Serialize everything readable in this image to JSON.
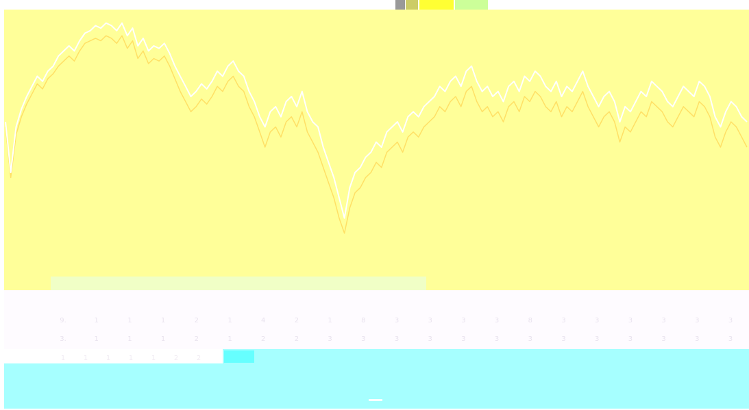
{
  "colors": {
    "chart_bg": "#ffff99",
    "lower_bg": "#fefbff",
    "footer_bg": "#a6ffff",
    "line_primary": "#ffffff",
    "line_secondary": "#ffe066",
    "tick_text": "#e8e2ee",
    "chip_gray": "#999999",
    "chip_yellow": "#ffff33",
    "chip_green": "#ccff99",
    "chip_cyan": "#33ffff"
  },
  "icons": {
    "toolbar_1": "square-icon",
    "toolbar_2": "star-icon",
    "toolbar_3": "chart-type-icon",
    "toolbar_4": "compare-icon"
  },
  "chart_data": {
    "type": "line",
    "x": [
      0,
      1,
      2,
      3,
      4,
      5,
      6,
      7,
      8,
      9,
      10,
      11,
      12,
      13,
      14,
      15,
      16,
      17,
      18,
      19,
      20,
      21,
      22,
      23,
      24,
      25,
      26,
      27,
      28,
      29,
      30,
      31,
      32,
      33,
      34,
      35,
      36,
      37,
      38,
      39,
      40,
      41,
      42,
      43,
      44,
      45,
      46,
      47,
      48,
      49,
      50,
      51,
      52,
      53,
      54,
      55,
      56,
      57,
      58,
      59,
      60,
      61,
      62,
      63,
      64,
      65,
      66,
      67,
      68,
      69,
      70,
      71,
      72,
      73,
      74,
      75,
      76,
      77,
      78,
      79,
      80,
      81,
      82,
      83,
      84,
      85,
      86,
      87,
      88,
      89,
      90,
      91,
      92,
      93,
      94,
      95,
      96,
      97,
      98,
      99,
      100,
      101,
      102,
      103,
      104,
      105,
      106,
      107,
      108,
      109,
      110,
      111,
      112,
      113,
      114,
      115,
      116,
      117,
      118,
      119,
      120,
      121,
      122,
      123,
      124,
      125,
      126,
      127,
      128,
      129,
      130,
      131,
      132,
      133,
      134,
      135,
      136,
      137,
      138,
      139,
      140
    ],
    "series": [
      {
        "values": [
          60,
          40,
          58,
          65,
          70,
          74,
          78,
          76,
          80,
          82,
          86,
          88,
          90,
          88,
          92,
          95,
          96,
          98,
          97,
          99,
          98,
          96,
          99,
          94,
          97,
          90,
          93,
          88,
          90,
          89,
          91,
          87,
          82,
          78,
          74,
          70,
          72,
          75,
          73,
          76,
          80,
          78,
          82,
          84,
          80,
          78,
          72,
          68,
          62,
          58,
          64,
          66,
          62,
          68,
          70,
          66,
          72,
          64,
          60,
          58,
          50,
          44,
          38,
          30,
          22,
          34,
          40,
          42,
          46,
          48,
          52,
          50,
          56,
          58,
          60,
          56,
          62,
          64,
          62,
          66,
          68,
          70,
          74,
          72,
          76,
          78,
          74,
          80,
          82,
          76,
          72,
          74,
          70,
          72,
          68,
          74,
          76,
          72,
          78,
          76,
          80,
          78,
          74,
          72,
          76,
          70,
          74,
          72,
          76,
          80,
          74,
          70,
          66,
          70,
          72,
          68,
          60,
          66,
          64,
          68,
          72,
          70,
          76,
          74,
          72,
          68,
          66,
          70,
          74,
          72,
          70,
          76,
          74,
          70,
          62,
          58,
          64,
          68,
          66,
          62,
          60
        ],
        "color_key": "line_primary"
      },
      {
        "values": [
          58,
          38,
          55,
          62,
          67,
          71,
          75,
          73,
          77,
          79,
          82,
          84,
          86,
          84,
          88,
          91,
          92,
          93,
          92,
          94,
          93,
          91,
          94,
          89,
          92,
          85,
          88,
          83,
          85,
          84,
          86,
          82,
          77,
          72,
          68,
          64,
          66,
          69,
          67,
          70,
          74,
          72,
          76,
          78,
          74,
          72,
          66,
          62,
          56,
          50,
          56,
          58,
          54,
          60,
          62,
          58,
          64,
          56,
          52,
          48,
          42,
          36,
          30,
          22,
          16,
          26,
          32,
          34,
          38,
          40,
          44,
          42,
          48,
          50,
          52,
          48,
          54,
          56,
          54,
          58,
          60,
          62,
          66,
          64,
          68,
          70,
          66,
          72,
          74,
          68,
          64,
          66,
          62,
          64,
          60,
          66,
          68,
          64,
          70,
          68,
          72,
          70,
          66,
          64,
          68,
          62,
          66,
          64,
          68,
          72,
          66,
          62,
          58,
          62,
          64,
          60,
          52,
          58,
          56,
          60,
          64,
          62,
          68,
          66,
          64,
          60,
          58,
          62,
          66,
          64,
          62,
          68,
          66,
          62,
          54,
          50,
          56,
          60,
          58,
          54,
          50
        ],
        "color_key": "line_secondary"
      }
    ],
    "x_tick_labels_row1": [
      "9.",
      "1",
      "1",
      "1",
      "2",
      "1",
      "4",
      "2",
      "1",
      "8",
      "3",
      "3",
      "3",
      "3",
      "8",
      "3",
      "3",
      "3",
      "3",
      "3",
      "3"
    ],
    "x_tick_labels_row2": [
      "3.",
      "1",
      "1",
      "1",
      "2",
      "1",
      "2",
      "2",
      "3",
      "3",
      "3",
      "3",
      "3",
      "3",
      "3",
      "3",
      "3",
      "3",
      "3",
      "3",
      "3"
    ],
    "x_tick_labels_row3": [
      "1",
      "1",
      "1",
      "1",
      "1",
      "2",
      "2"
    ],
    "ylim": [
      0,
      100
    ],
    "grid": false,
    "legend": "none"
  }
}
